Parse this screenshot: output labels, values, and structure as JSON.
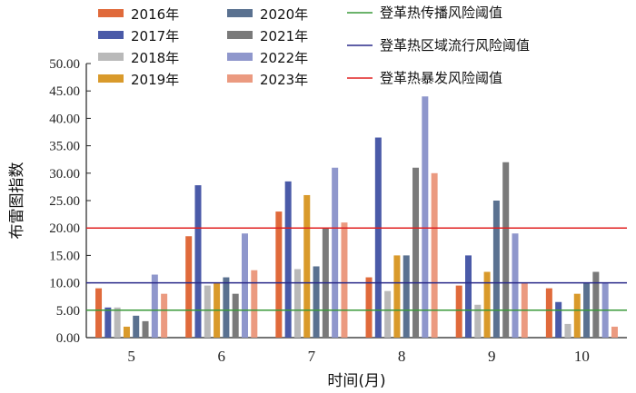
{
  "chart_data": {
    "type": "bar",
    "xlabel": "时间(月)",
    "ylabel": "布雷图指数",
    "ylim": [
      0,
      50
    ],
    "yticks": [
      "0.00",
      "5.00",
      "10.00",
      "15.00",
      "20.00",
      "25.00",
      "30.00",
      "35.00",
      "40.00",
      "45.00",
      "50.00"
    ],
    "categories": [
      "5",
      "6",
      "7",
      "8",
      "9",
      "10"
    ],
    "series": [
      {
        "name": "2016年",
        "color": "#e06a3b",
        "values": [
          9.0,
          18.5,
          23.0,
          11.0,
          9.5,
          9.0
        ]
      },
      {
        "name": "2017年",
        "color": "#4a5aa8",
        "values": [
          5.5,
          27.8,
          28.5,
          36.5,
          15.0,
          6.5
        ]
      },
      {
        "name": "2018年",
        "color": "#b9b9b9",
        "values": [
          5.5,
          9.5,
          12.5,
          8.5,
          6.0,
          2.5
        ]
      },
      {
        "name": "2019年",
        "color": "#d99a2b",
        "values": [
          2.0,
          10.0,
          26.0,
          15.0,
          12.0,
          8.0
        ]
      },
      {
        "name": "2020年",
        "color": "#5a7190",
        "values": [
          4.0,
          11.0,
          13.0,
          15.0,
          25.0,
          10.0
        ]
      },
      {
        "name": "2021年",
        "color": "#7a7a7a",
        "values": [
          3.0,
          8.0,
          20.0,
          31.0,
          32.0,
          12.0
        ]
      },
      {
        "name": "2022年",
        "color": "#8f97cc",
        "values": [
          11.5,
          19.0,
          31.0,
          44.0,
          19.0,
          10.0
        ]
      },
      {
        "name": "2023年",
        "color": "#eb9a80",
        "values": [
          8.0,
          12.3,
          21.0,
          30.0,
          10.0,
          2.0
        ]
      }
    ],
    "thresholds": [
      {
        "name": "登革热传播风险阈值",
        "value": 5,
        "color": "#3a9a3a"
      },
      {
        "name": "登革热区域流行风险阈值",
        "value": 10,
        "color": "#2a2a8a"
      },
      {
        "name": "登革热暴发风险阈值",
        "value": 20,
        "color": "#e02020"
      }
    ],
    "grid": false,
    "legend_position": "top"
  }
}
